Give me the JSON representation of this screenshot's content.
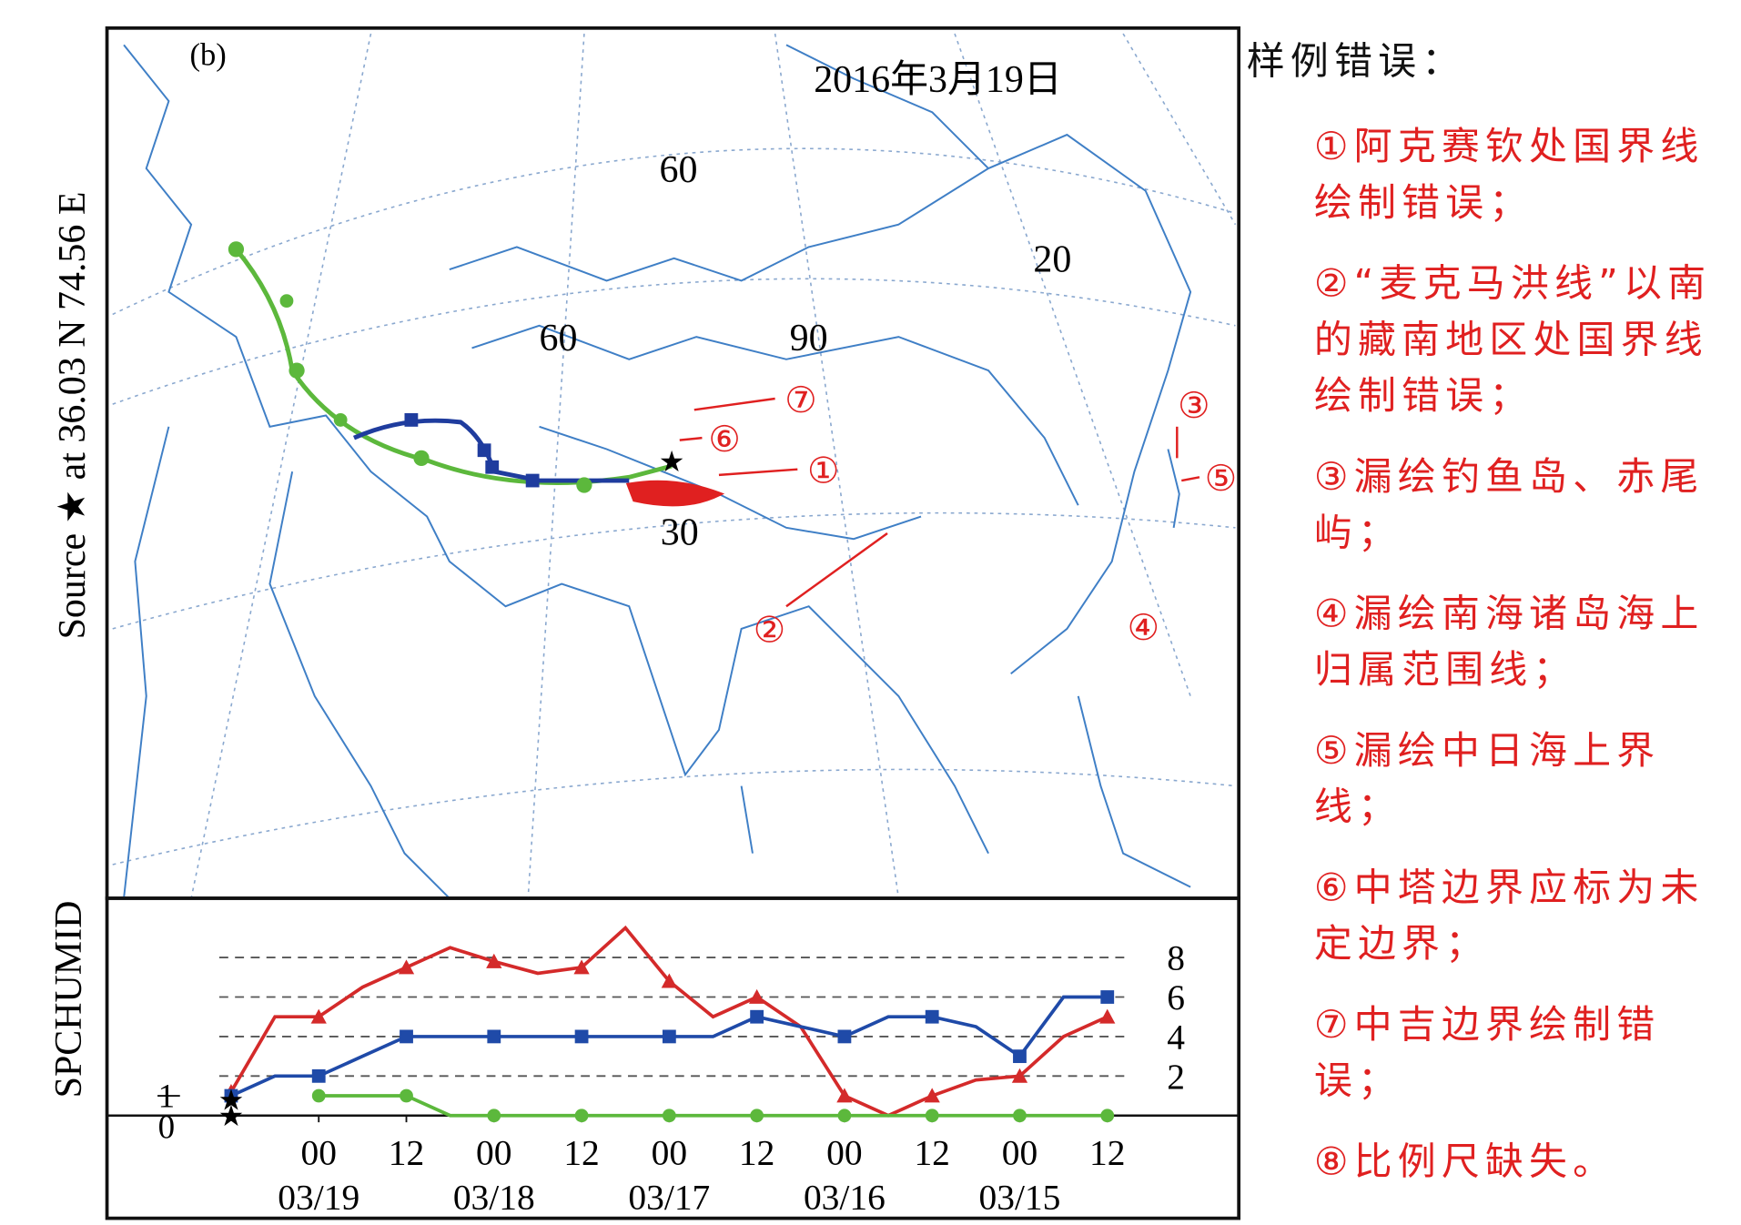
{
  "map": {
    "panel": "(b)",
    "date": "2016年3月19日",
    "source": "Source ★ at 36.03 N 74.56 E",
    "grid_labels": [
      "60",
      "20",
      "60",
      "90",
      "30"
    ],
    "annotations": [
      "①",
      "②",
      "③",
      "④",
      "⑤",
      "⑥",
      "⑦"
    ]
  },
  "errors": {
    "title": "样例错误：",
    "items": [
      "①阿克赛钦处国界线绘制错误；",
      "②“麦克马洪线”以南的藏南地区处国界线绘制错误；",
      "③漏绘钓鱼岛、赤尾屿；",
      "④漏绘南海诸岛海上归属范围线；",
      "⑤漏绘中日海上界线；",
      "⑥中塔边界应标为未定边界；",
      "⑦中吉边界绘制错误；",
      "⑧比例尺缺失。"
    ]
  },
  "chart_data": {
    "type": "line",
    "y_label": "SPCHUMID",
    "x": [
      0,
      6,
      12,
      18,
      24,
      30,
      36,
      42,
      48,
      54,
      60,
      66,
      72,
      78,
      84,
      90,
      96,
      102,
      108,
      114,
      120
    ],
    "xlim": [
      -17,
      138
    ],
    "ylim": [
      -5.2,
      11
    ],
    "xticks": [
      {
        "value": 12,
        "label": "00"
      },
      {
        "value": 24,
        "label": "12"
      },
      {
        "value": 36,
        "label": "00"
      },
      {
        "value": 48,
        "label": "12"
      },
      {
        "value": 60,
        "label": "00"
      },
      {
        "value": 72,
        "label": "12"
      },
      {
        "value": 84,
        "label": "00"
      },
      {
        "value": 96,
        "label": "12"
      },
      {
        "value": 108,
        "label": "00"
      },
      {
        "value": 120,
        "label": "12"
      }
    ],
    "xdates": [
      {
        "value": 12,
        "label": "03/19"
      },
      {
        "value": 36,
        "label": "03/18"
      },
      {
        "value": 60,
        "label": "03/17"
      },
      {
        "value": 84,
        "label": "03/16"
      },
      {
        "value": 108,
        "label": "03/15"
      }
    ],
    "yticks_left": [
      0,
      1
    ],
    "yticks": [
      2,
      4,
      6,
      8
    ],
    "grid": true,
    "series": [
      {
        "name": "red",
        "color": "#d42a2a",
        "marker": "triangle",
        "values": [
          1.2,
          5,
          5,
          6.5,
          7.5,
          8.5,
          7.8,
          7.2,
          7.5,
          9.5,
          6.8,
          5,
          6,
          4.5,
          1,
          0,
          1,
          1.8,
          2,
          4,
          5
        ]
      },
      {
        "name": "blue",
        "color": "#1f4aa8",
        "marker": "square",
        "values": [
          1,
          2,
          2,
          3,
          4,
          4,
          4,
          4,
          4,
          4,
          4,
          4,
          5,
          4.5,
          4,
          5,
          5,
          4.5,
          3,
          6,
          6
        ]
      },
      {
        "name": "green",
        "color": "#5cb83c",
        "marker": "circle",
        "values": [
          null,
          null,
          1,
          1,
          1,
          0,
          0,
          0,
          0,
          0,
          0,
          0,
          0,
          0,
          0,
          0,
          0,
          0,
          0,
          0,
          0
        ]
      }
    ]
  }
}
